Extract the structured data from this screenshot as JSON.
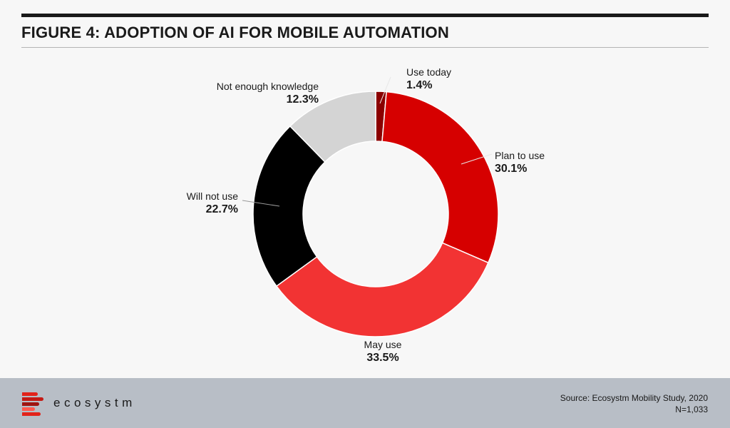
{
  "title": "FIGURE 4: ADOPTION OF AI FOR MOBILE AUTOMATION",
  "chart_data": {
    "type": "pie",
    "donut": true,
    "categories": [
      "Use today",
      "Plan to use",
      "May use",
      "Will not use",
      "Not enough knowledge"
    ],
    "values": [
      1.4,
      30.1,
      33.5,
      22.7,
      12.3
    ],
    "value_labels": [
      "1.4%",
      "30.1%",
      "33.5%",
      "22.7%",
      "12.3%"
    ],
    "colors": [
      "#8b0000",
      "#d60000",
      "#f23333",
      "#000000",
      "#d4d4d4"
    ],
    "start": "12 o'clock, clockwise",
    "legend": "none (direct labels)"
  },
  "footer": {
    "brand": "ecosystm",
    "logo_colors": [
      "#e2231a",
      "#c41a14",
      "#9e1410",
      "#ff5a4f",
      "#e2231a"
    ],
    "source": "Source: Ecosystm Mobility Study, 2020",
    "sample": "N=1,033"
  }
}
